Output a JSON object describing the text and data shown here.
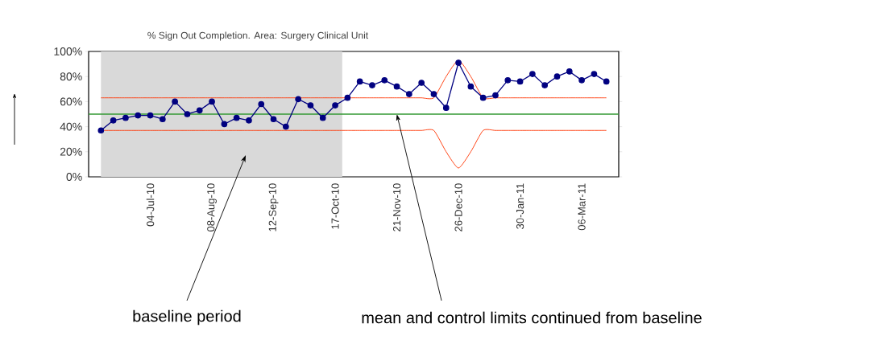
{
  "chart_data": {
    "type": "line",
    "title": "% Sign Out Completion. Area: Surgery Clinical Unit",
    "x": [
      "2010-06-06",
      "2010-06-13",
      "2010-06-20",
      "2010-06-27",
      "2010-07-04",
      "2010-07-11",
      "2010-07-18",
      "2010-07-25",
      "2010-08-01",
      "2010-08-08",
      "2010-08-15",
      "2010-08-22",
      "2010-08-29",
      "2010-09-05",
      "2010-09-12",
      "2010-09-19",
      "2010-09-26",
      "2010-10-03",
      "2010-10-10",
      "2010-10-17",
      "2010-10-24",
      "2010-10-31",
      "2010-11-07",
      "2010-11-14",
      "2010-11-21",
      "2010-11-28",
      "2010-12-05",
      "2010-12-12",
      "2010-12-19",
      "2010-12-26",
      "2011-01-02",
      "2011-01-09",
      "2011-01-16",
      "2011-01-23",
      "2011-01-30",
      "2011-02-06",
      "2011-02-13",
      "2011-02-20",
      "2011-02-27",
      "2011-03-06",
      "2011-03-13",
      "2011-03-20"
    ],
    "xlim": [
      "2010-05-30",
      "2011-03-27"
    ],
    "xticks": [
      {
        "value": "2010-07-04",
        "label": "04-Jul-10"
      },
      {
        "value": "2010-08-08",
        "label": "08-Aug-10"
      },
      {
        "value": "2010-09-12",
        "label": "12-Sep-10"
      },
      {
        "value": "2010-10-17",
        "label": "17-Oct-10"
      },
      {
        "value": "2010-11-21",
        "label": "21-Nov-10"
      },
      {
        "value": "2010-12-26",
        "label": "26-Dec-10"
      },
      {
        "value": "2011-01-30",
        "label": "30-Jan-11"
      },
      {
        "value": "2011-03-06",
        "label": "06-Mar-11"
      }
    ],
    "ylim": [
      0,
      100
    ],
    "yticks": [
      {
        "value": 0,
        "label": "0%"
      },
      {
        "value": 20,
        "label": "20%"
      },
      {
        "value": 40,
        "label": "40%"
      },
      {
        "value": 60,
        "label": "60%"
      },
      {
        "value": 80,
        "label": "80%"
      },
      {
        "value": 100,
        "label": "100%"
      }
    ],
    "marker": "circle",
    "series": [
      {
        "color": "#000080",
        "values": [
          37,
          45,
          47,
          49,
          49,
          46,
          60,
          50,
          53,
          60,
          42,
          47,
          45,
          58,
          46,
          40,
          62,
          57,
          47,
          57,
          63,
          76,
          73,
          77,
          72,
          66,
          75,
          66,
          55,
          91,
          72,
          63,
          65,
          77,
          76,
          82,
          73,
          80,
          84,
          77,
          82,
          76
        ]
      },
      {
        "color": "#ff3300",
        "marker": "none",
        "values": [
          63,
          63,
          63,
          63,
          63,
          63,
          63,
          63,
          63,
          63,
          63,
          63,
          63,
          63,
          63,
          63,
          63,
          63,
          63,
          63,
          63,
          63,
          63,
          63,
          63,
          63,
          63,
          63,
          80,
          93,
          80,
          63,
          63,
          63,
          63,
          63,
          63,
          63,
          63,
          63,
          63,
          63
        ]
      },
      {
        "color": "#ff3300",
        "marker": "none",
        "values": [
          37,
          37,
          37,
          37,
          37,
          37,
          37,
          37,
          37,
          37,
          37,
          37,
          37,
          37,
          37,
          37,
          37,
          37,
          37,
          37,
          37,
          37,
          37,
          37,
          37,
          37,
          37,
          37,
          20,
          7,
          20,
          37,
          37,
          37,
          37,
          37,
          37,
          37,
          37,
          37,
          37,
          37
        ]
      }
    ],
    "ref_lines": [
      {
        "axis": "y",
        "value": 50,
        "color": "#339933"
      }
    ],
    "bands": [
      {
        "axis": "x",
        "from": "2010-06-06",
        "to": "2010-10-21",
        "color": "#d9d9d9"
      }
    ],
    "annotations": [
      "baseline period",
      {
        "text": "mean and control limits continued from baseline",
        "x": "2010-11-21",
        "y": 50
      }
    ]
  }
}
